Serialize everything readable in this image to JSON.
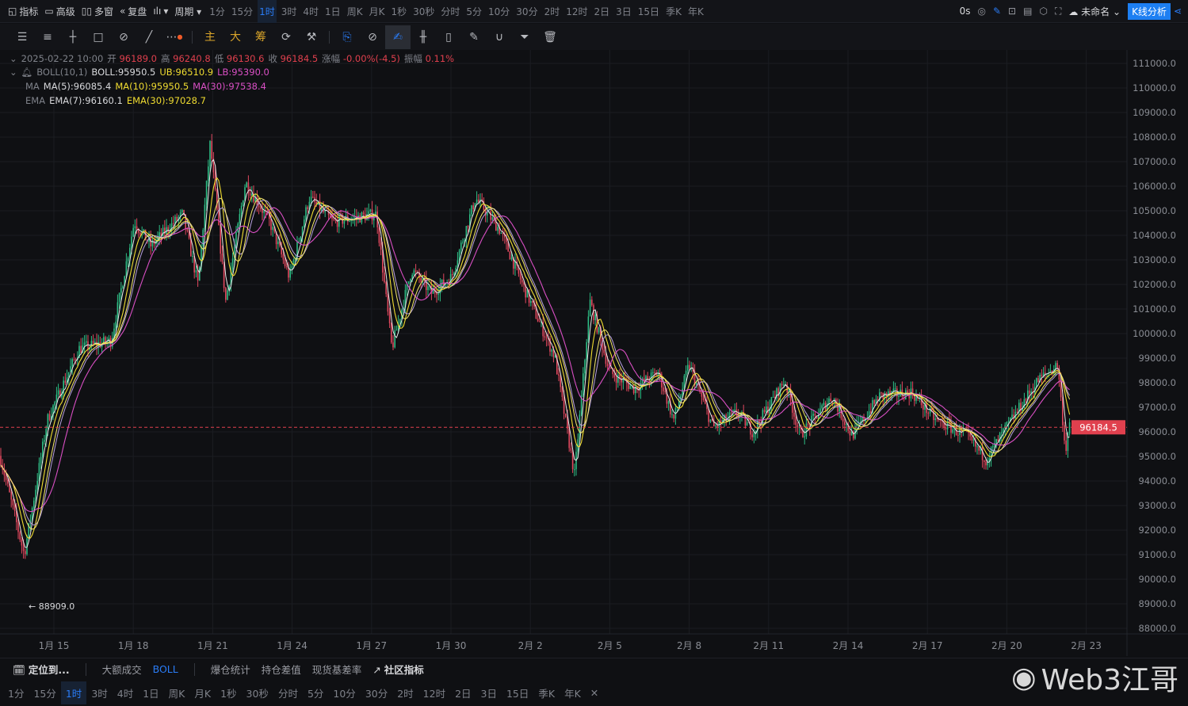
{
  "top": {
    "items": [
      {
        "icon": "chart-icon",
        "label": "指标"
      },
      {
        "icon": "window-icon",
        "label": "高级"
      },
      {
        "icon": "grid-icon",
        "label": "多窗"
      },
      {
        "icon": "rewind-icon",
        "label": "复盘"
      },
      {
        "icon": "candle-type-icon",
        "label": "▾"
      },
      {
        "icon": "",
        "label": "周期 ▾"
      }
    ],
    "timeframes": [
      "1分",
      "15分",
      "1时",
      "3时",
      "4时",
      "1日",
      "周K",
      "月K",
      "1秒",
      "30秒",
      "分时",
      "5分",
      "10分",
      "30分",
      "2时",
      "12时",
      "2日",
      "3日",
      "15日",
      "季K",
      "年K"
    ],
    "active_timeframe": "1时",
    "latency": "0s",
    "layout_name": "未命名",
    "analysis_button": "K线分析"
  },
  "tools": {
    "main": "主",
    "big": "大",
    "chip": "筹"
  },
  "info": {
    "datetime": "2025-02-22 10:00",
    "open_label": "开",
    "open": "96189.0",
    "high_label": "高",
    "high": "96240.8",
    "low_label": "低",
    "low": "96130.6",
    "close_label": "收",
    "close": "96184.5",
    "change_label": "涨幅",
    "change": "-0.00%(-4.5)",
    "amp_label": "振幅",
    "amp": "0.11%"
  },
  "indicators": {
    "boll": {
      "name": "BOLL(10,1)",
      "mid": "BOLL:95950.5",
      "ub": "UB:96510.9",
      "lb": "LB:95390.0"
    },
    "ma": {
      "name": "MA",
      "ma5": "MA(5):96085.4",
      "ma10": "MA(10):95950.5",
      "ma30": "MA(30):97538.4"
    },
    "ema": {
      "name": "EMA",
      "ema7": "EMA(7):96160.1",
      "ema30": "EMA(30):97028.7"
    }
  },
  "colors": {
    "up": "#2ebd85",
    "down": "#e0485e",
    "ma_yellow": "#f0dc30",
    "ma_pink": "#d94fc4",
    "accent": "#1d7ff2",
    "last_price": "#e0404e"
  },
  "chart_data": {
    "type": "candlestick",
    "ylim": [
      88000,
      111000
    ],
    "y_ticks": [
      "111000.0",
      "110000.0",
      "109000.0",
      "108000.0",
      "107000.0",
      "106000.0",
      "105000.0",
      "104000.0",
      "103000.0",
      "102000.0",
      "101000.0",
      "100000.0",
      "99000.0",
      "98000.0",
      "97000.0",
      "96000.0",
      "95000.0",
      "94000.0",
      "93000.0",
      "92000.0",
      "91000.0",
      "90000.0",
      "89000.0",
      "88000.0"
    ],
    "x_ticks": [
      "1月 15",
      "1月 18",
      "1月 21",
      "1月 24",
      "1月 27",
      "1月 30",
      "2月 2",
      "2月 5",
      "2月 8",
      "2月 11",
      "2月 14",
      "2月 17",
      "2月 20",
      "2月 23"
    ],
    "last_price": "96184.5",
    "min_label": "88909.0",
    "close_path": [
      [
        "01-12 23:00",
        95030
      ],
      [
        "01-13 21:00",
        91000
      ],
      [
        "01-14 18:00",
        96480
      ],
      [
        "01-15 23:00",
        99390
      ],
      [
        "01-17 04:00",
        99710
      ],
      [
        "01-18 01:00",
        104550
      ],
      [
        "01-18 16:00",
        103580
      ],
      [
        "01-19 21:00",
        104870
      ],
      [
        "01-20 11:00",
        101970
      ],
      [
        "01-20 22:00",
        107770
      ],
      [
        "01-21 12:00",
        101320
      ],
      [
        "01-22 06:00",
        106160
      ],
      [
        "01-23 04:00",
        104550
      ],
      [
        "01-23 22:00",
        102290
      ],
      [
        "01-24 16:00",
        105520
      ],
      [
        "01-25 13:00",
        104550
      ],
      [
        "01-27 05:00",
        104870
      ],
      [
        "01-27 19:00",
        99390
      ],
      [
        "01-28 13:00",
        102610
      ],
      [
        "01-29 07:00",
        101650
      ],
      [
        "01-30 01:00",
        102290
      ],
      [
        "01-30 23:00",
        105520
      ],
      [
        "01-31 21:00",
        104230
      ],
      [
        "02-01 18:00",
        101970
      ],
      [
        "02-02 23:00",
        99060
      ],
      [
        "02-03 17:00",
        94230
      ],
      [
        "02-04 07:00",
        101320
      ],
      [
        "02-05 01:00",
        98420
      ],
      [
        "02-05 23:00",
        97770
      ],
      [
        "02-06 21:00",
        98420
      ],
      [
        "02-07 11:00",
        96480
      ],
      [
        "02-08 01:00",
        98740
      ],
      [
        "02-08 23:00",
        96160
      ],
      [
        "02-09 21:00",
        96800
      ],
      [
        "02-10 11:00",
        96000
      ],
      [
        "02-11 16:00",
        98100
      ],
      [
        "02-12 06:00",
        95840
      ],
      [
        "02-13 11:00",
        97450
      ],
      [
        "02-14 05:00",
        95840
      ],
      [
        "02-15 06:00",
        97450
      ],
      [
        "02-16 11:00",
        97610
      ],
      [
        "02-17 09:00",
        96480
      ],
      [
        "02-18 13:00",
        95840
      ],
      [
        "02-19 07:00",
        94870
      ],
      [
        "02-20 01:00",
        96160
      ],
      [
        "02-21 06:00",
        98100
      ],
      [
        "02-22 00:00",
        98740
      ],
      [
        "02-22 07:00",
        95190
      ],
      [
        "02-22 10:00",
        96184.5
      ]
    ]
  },
  "bottom": {
    "locate": "定位到...",
    "big_trade": "大额成交",
    "boll": "BOLL",
    "liq": "爆仓统计",
    "oi": "持仓差值",
    "basis": "现货基差率",
    "community": "社区指标"
  },
  "watermark": "Web3江哥"
}
